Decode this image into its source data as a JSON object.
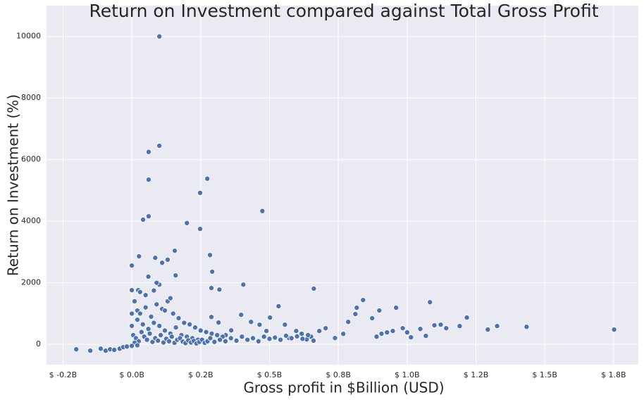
{
  "chart_data": {
    "type": "scatter",
    "title": "Return on Investment compared against Total Gross Profit",
    "x_label": "Gross profit in $Billion (USD)",
    "y_label": "Return on Investment (%)",
    "color": "#4c72b0",
    "grid": true,
    "xlim": [
      -0.31,
      1.84
    ],
    "ylim": [
      -660,
      11000
    ],
    "xticks": [
      {
        "value": -0.25,
        "label": "$ -0.2B"
      },
      {
        "value": 0,
        "label": "$ 0.0B"
      },
      {
        "value": 0.25,
        "label": "$ 0.2B"
      },
      {
        "value": 0.5,
        "label": "$ 0.5B"
      },
      {
        "value": 0.75,
        "label": "$ 0.8B"
      },
      {
        "value": 1.0,
        "label": "$ 1.0B"
      },
      {
        "value": 1.25,
        "label": "$ 1.2B"
      },
      {
        "value": 1.5,
        "label": "$ 1.5B"
      },
      {
        "value": 1.75,
        "label": "$ 1.8B"
      }
    ],
    "yticks": [
      0,
      2000,
      4000,
      6000,
      8000,
      10000
    ],
    "x": [
      0.1,
      0.1,
      0.061,
      0.061,
      0.274,
      0.248,
      0.474,
      0.061,
      0.041,
      0.2,
      0.248,
      0.156,
      0.284,
      0.085,
      0.026,
      0.292,
      0,
      0.159,
      0.405,
      0.661,
      0.289,
      0.318,
      0.1,
      0.023,
      0,
      0.817,
      0.84,
      0.96,
      1.083,
      0.899,
      0.533,
      1.217,
      1.752,
      1.434,
      1.327,
      1.293,
      1.191,
      1.142,
      1.122,
      1.099,
      1.048,
      1.068,
      1.0,
      0.984,
      1.014,
      0.948,
      0.927,
      0.907,
      0.889,
      0.873,
      0.812,
      0.786,
      0.768,
      0.738,
      0.704,
      0.681,
      0.651,
      0.635,
      0.617,
      0.597,
      0.571,
      0.556,
      0.502,
      0.489,
      0.464,
      0.433,
      0.397,
      0.361,
      0.341,
      0.315,
      0.289,
      -0.202,
      -0.151,
      -0.113,
      -0.095,
      -0.079,
      -0.064,
      -0.044,
      -0.031,
      -0.018,
      0.01,
      0.02,
      0.03,
      0.05,
      0.07,
      0.09,
      0.11,
      0.13,
      0.15,
      0.17,
      0.19,
      0.21,
      0.23,
      0.25,
      0.27,
      0.29,
      0.31,
      0.33,
      0.02,
      0.04,
      0.06,
      0.08,
      0.1,
      0.12,
      0.14,
      0.16,
      0.18,
      0.2,
      0.22,
      0.24,
      0.005,
      0.015,
      0.025,
      0.035,
      0.045,
      0.055,
      0.065,
      0.075,
      0.085,
      0.095,
      0.105,
      0.115,
      0.125,
      0.135,
      0.145,
      0.155,
      0.165,
      0.175,
      0.185,
      0.195,
      0.205,
      0.215,
      0.225,
      0.235,
      0.245,
      0.255,
      0.265,
      0.275,
      0.285,
      0.3,
      0.32,
      0.34,
      0.36,
      0.38,
      0.4,
      0.42,
      0.44,
      0.46,
      0.48,
      0.5,
      0.52,
      0.54,
      0.56,
      0.58,
      0.6,
      0.62,
      0.64,
      0.66,
      0.0,
      0.0,
      0.01,
      0.02,
      0.0,
      0.05,
      0.08,
      0.12,
      0.14,
      0.03,
      0.06,
      0.09,
      0.11,
      0.13
    ],
    "values": [
      10000,
      6450,
      6250,
      5350,
      5380,
      4920,
      4330,
      4160,
      4050,
      3940,
      3750,
      3040,
      2900,
      2810,
      2860,
      2360,
      2560,
      2240,
      1940,
      1810,
      1830,
      1780,
      1940,
      1760,
      1760,
      1190,
      1440,
      1190,
      1370,
      1100,
      1240,
      870,
      480,
      570,
      595,
      480,
      595,
      525,
      640,
      620,
      500,
      275,
      390,
      525,
      230,
      435,
      390,
      345,
      250,
      850,
      985,
      730,
      340,
      205,
      525,
      435,
      250,
      160,
      345,
      435,
      205,
      640,
      870,
      435,
      640,
      730,
      960,
      455,
      300,
      710,
      890,
      -160,
      -205,
      -140,
      -205,
      -160,
      -180,
      -140,
      -90,
      -70,
      1400,
      1100,
      1000,
      1200,
      900,
      1300,
      1150,
      1400,
      1000,
      850,
      700,
      650,
      550,
      450,
      400,
      350,
      300,
      250,
      800,
      650,
      500,
      700,
      600,
      450,
      350,
      550,
      300,
      250,
      200,
      150,
      300,
      200,
      100,
      400,
      250,
      150,
      350,
      80,
      200,
      120,
      300,
      60,
      180,
      100,
      250,
      50,
      150,
      200,
      90,
      40,
      130,
      60,
      110,
      30,
      80,
      150,
      50,
      100,
      200,
      80,
      150,
      100,
      200,
      120,
      250,
      150,
      200,
      100,
      250,
      180,
      220,
      150,
      280,
      200,
      260,
      180,
      300,
      120,
      600,
      1000,
      50,
      -30,
      -50,
      1600,
      1750,
      1100,
      1500,
      1700,
      2200,
      2000,
      2650,
      2750
    ]
  }
}
